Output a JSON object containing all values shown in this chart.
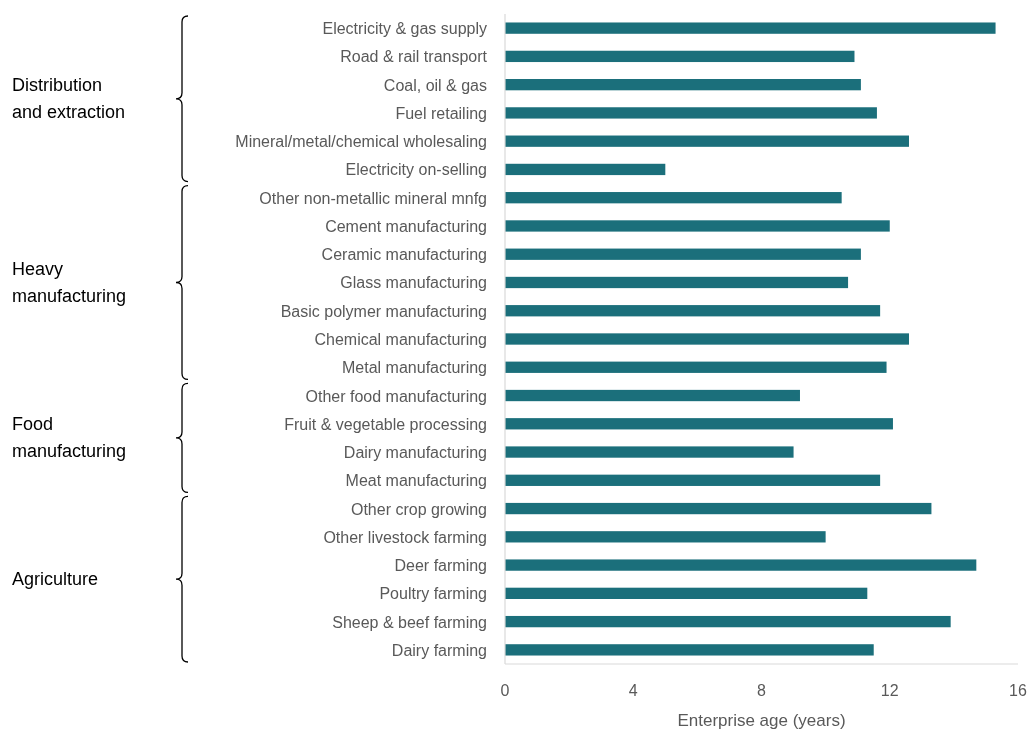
{
  "chart_data": {
    "type": "bar",
    "orientation": "horizontal",
    "xlabel": "Enterprise age (years)",
    "categories": [
      "Electricity & gas supply",
      "Road & rail transport",
      "Coal, oil & gas",
      "Fuel retailing",
      "Mineral/metal/chemical wholesaling",
      "Electricity on-selling",
      "Other non-metallic mineral mnfg",
      "Cement manufacturing",
      "Ceramic manufacturing",
      "Glass manufacturing",
      "Basic polymer manufacturing",
      "Chemical manufacturing",
      "Metal manufacturing",
      "Other food manufacturing",
      "Fruit & vegetable processing",
      "Dairy manufacturing",
      "Meat manufacturing",
      "Other crop growing",
      "Other livestock farming",
      "Deer farming",
      "Poultry farming",
      "Sheep & beef farming",
      "Dairy farming"
    ],
    "values": [
      15.3,
      10.9,
      11.1,
      11.6,
      12.6,
      5.0,
      10.5,
      12.0,
      11.1,
      10.7,
      11.7,
      12.6,
      11.9,
      9.2,
      12.1,
      9.0,
      11.7,
      13.3,
      10.0,
      14.7,
      11.3,
      13.9,
      11.5
    ],
    "color": "#1b6f7b",
    "xlim": [
      0,
      16
    ],
    "xticks": [
      0,
      4,
      8,
      12,
      16
    ],
    "grid": false,
    "annotations": [
      "Distribution and extraction",
      "Heavy manufacturing",
      "Food manufacturing",
      "Agriculture"
    ]
  }
}
